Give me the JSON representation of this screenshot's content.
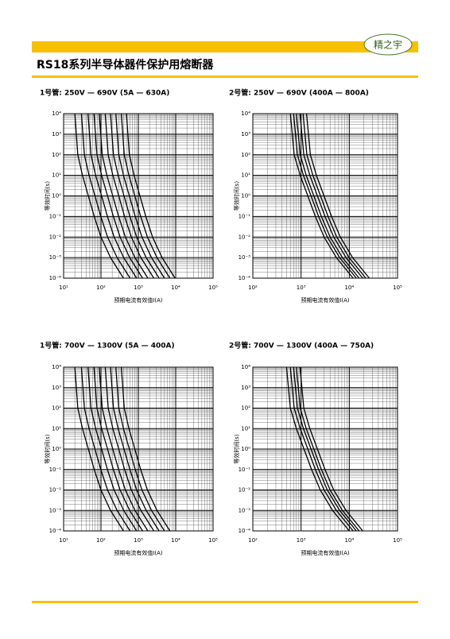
{
  "header": {
    "logo": "精之宇",
    "title": "RS18系列半导体器件保护用熔断器"
  },
  "chart_data": [
    {
      "type": "line",
      "title": "1号管: 250V — 690V (5A — 630A)",
      "ylabel": "等效时间(s)",
      "xlabel": "预期电流有效值I(A)",
      "log_scale": true,
      "grid": true,
      "color": "#000000",
      "xlim": [
        10,
        100000
      ],
      "ylim": [
        0.0001,
        10000
      ],
      "xticks": [
        {
          "value": 10,
          "label": "10¹"
        },
        {
          "value": 100,
          "label": "10²"
        },
        {
          "value": 1000,
          "label": "10³"
        },
        {
          "value": 10000,
          "label": "10⁴"
        },
        {
          "value": 100000,
          "label": "10⁵"
        }
      ],
      "yticks": [
        {
          "value": 0.0001,
          "label": "10⁻⁴"
        },
        {
          "value": 0.001,
          "label": "10⁻³"
        },
        {
          "value": 0.01,
          "label": "10⁻²"
        },
        {
          "value": 0.1,
          "label": "10⁻¹"
        },
        {
          "value": 1,
          "label": "10⁰"
        },
        {
          "value": 10,
          "label": "10¹"
        },
        {
          "value": 100,
          "label": "10²"
        },
        {
          "value": 1000,
          "label": "10³"
        },
        {
          "value": 10000,
          "label": "10⁴"
        }
      ],
      "series": [
        {
          "x": [
            20,
            24,
            32,
            46,
            66,
            100,
            180,
            400
          ],
          "values": [
            10000,
            100,
            10,
            1,
            0.1,
            0.01,
            0.001,
            0.0001
          ]
        },
        {
          "x": [
            30,
            36,
            48,
            69,
            99,
            150,
            270,
            600
          ],
          "values": [
            10000,
            100,
            10,
            1,
            0.1,
            0.01,
            0.001,
            0.0001
          ]
        },
        {
          "x": [
            45,
            54,
            72,
            104,
            149,
            225,
            405,
            900
          ],
          "values": [
            10000,
            100,
            10,
            1,
            0.1,
            0.01,
            0.001,
            0.0001
          ]
        },
        {
          "x": [
            65,
            78,
            104,
            150,
            215,
            325,
            585,
            1300
          ],
          "values": [
            10000,
            100,
            10,
            1,
            0.1,
            0.01,
            0.001,
            0.0001
          ]
        },
        {
          "x": [
            90,
            108,
            144,
            207,
            297,
            450,
            810,
            1800
          ],
          "values": [
            10000,
            100,
            10,
            1,
            0.1,
            0.01,
            0.001,
            0.0001
          ]
        },
        {
          "x": [
            130,
            156,
            208,
            299,
            429,
            650,
            1170,
            2600
          ],
          "values": [
            10000,
            100,
            10,
            1,
            0.1,
            0.01,
            0.001,
            0.0001
          ]
        },
        {
          "x": [
            180,
            216,
            288,
            414,
            594,
            900,
            1620,
            3600
          ],
          "values": [
            10000,
            100,
            10,
            1,
            0.1,
            0.01,
            0.001,
            0.0001
          ]
        },
        {
          "x": [
            250,
            300,
            400,
            575,
            825,
            1250,
            2250,
            5000
          ],
          "values": [
            10000,
            100,
            10,
            1,
            0.1,
            0.01,
            0.001,
            0.0001
          ]
        },
        {
          "x": [
            350,
            420,
            560,
            805,
            1155,
            1750,
            3150,
            7000
          ],
          "values": [
            10000,
            100,
            10,
            1,
            0.1,
            0.01,
            0.001,
            0.0001
          ]
        },
        {
          "x": [
            480,
            576,
            768,
            1104,
            1584,
            2400,
            4320,
            9600
          ],
          "values": [
            10000,
            100,
            10,
            1,
            0.1,
            0.01,
            0.001,
            0.0001
          ]
        }
      ]
    },
    {
      "type": "line",
      "title": "2号管: 250V — 690V (400A — 800A)",
      "ylabel": "等效时间(s)",
      "xlabel": "预期电流有效值I(A)",
      "log_scale": true,
      "grid": true,
      "color": "#000000",
      "xlim": [
        100,
        100000
      ],
      "ylim": [
        0.0001,
        10000
      ],
      "xticks": [
        {
          "value": 100,
          "label": "10²"
        },
        {
          "value": 1000,
          "label": "10³"
        },
        {
          "value": 10000,
          "label": "10⁴"
        },
        {
          "value": 100000,
          "label": "10⁵"
        }
      ],
      "yticks": [
        {
          "value": 0.0001,
          "label": "10⁻⁴"
        },
        {
          "value": 0.001,
          "label": "10⁻³"
        },
        {
          "value": 0.01,
          "label": "10⁻²"
        },
        {
          "value": 0.1,
          "label": "10⁻¹"
        },
        {
          "value": 1,
          "label": "10⁰"
        },
        {
          "value": 10,
          "label": "10¹"
        },
        {
          "value": 100,
          "label": "10²"
        },
        {
          "value": 1000,
          "label": "10³"
        },
        {
          "value": 10000,
          "label": "10⁴"
        }
      ],
      "series": [
        {
          "x": [
            600,
            720,
            960,
            1380,
            1980,
            3000,
            5400,
            12000
          ],
          "values": [
            10000,
            100,
            10,
            1,
            0.1,
            0.01,
            0.001,
            0.0001
          ]
        },
        {
          "x": [
            700,
            840,
            1120,
            1610,
            2310,
            3500,
            6300,
            14000
          ],
          "values": [
            10000,
            100,
            10,
            1,
            0.1,
            0.01,
            0.001,
            0.0001
          ]
        },
        {
          "x": [
            800,
            960,
            1280,
            1840,
            2640,
            4000,
            7200,
            16000
          ],
          "values": [
            10000,
            100,
            10,
            1,
            0.1,
            0.01,
            0.001,
            0.0001
          ]
        },
        {
          "x": [
            950,
            1140,
            1520,
            2185,
            3135,
            4750,
            8550,
            19000
          ],
          "values": [
            10000,
            100,
            10,
            1,
            0.1,
            0.01,
            0.001,
            0.0001
          ]
        },
        {
          "x": [
            1100,
            1320,
            1760,
            2530,
            3630,
            5500,
            9900,
            22000
          ],
          "values": [
            10000,
            100,
            10,
            1,
            0.1,
            0.01,
            0.001,
            0.0001
          ]
        },
        {
          "x": [
            1300,
            1560,
            2080,
            2990,
            4290,
            6500,
            11700,
            26000
          ],
          "values": [
            10000,
            100,
            10,
            1,
            0.1,
            0.01,
            0.001,
            0.0001
          ]
        }
      ]
    },
    {
      "type": "line",
      "title": "1号管: 700V — 1300V (5A — 400A)",
      "ylabel": "等效时间(s)",
      "xlabel": "预期电流有效值I(A)",
      "log_scale": true,
      "grid": true,
      "color": "#000000",
      "xlim": [
        10,
        100000
      ],
      "ylim": [
        0.0001,
        10000
      ],
      "xticks": [
        {
          "value": 10,
          "label": "10¹"
        },
        {
          "value": 100,
          "label": "10²"
        },
        {
          "value": 1000,
          "label": "10³"
        },
        {
          "value": 10000,
          "label": "10⁴"
        },
        {
          "value": 100000,
          "label": "10⁵"
        }
      ],
      "yticks": [
        {
          "value": 0.0001,
          "label": "10⁻⁴"
        },
        {
          "value": 0.001,
          "label": "10⁻³"
        },
        {
          "value": 0.01,
          "label": "10⁻²"
        },
        {
          "value": 0.1,
          "label": "10⁻¹"
        },
        {
          "value": 1,
          "label": "10⁰"
        },
        {
          "value": 10,
          "label": "10¹"
        },
        {
          "value": 100,
          "label": "10²"
        },
        {
          "value": 1000,
          "label": "10³"
        },
        {
          "value": 10000,
          "label": "10⁴"
        }
      ],
      "series": [
        {
          "x": [
            20,
            24,
            32,
            46,
            66,
            100,
            180,
            400
          ],
          "values": [
            10000,
            100,
            10,
            1,
            0.1,
            0.01,
            0.001,
            0.0001
          ]
        },
        {
          "x": [
            30,
            36,
            48,
            69,
            99,
            150,
            270,
            600
          ],
          "values": [
            10000,
            100,
            10,
            1,
            0.1,
            0.01,
            0.001,
            0.0001
          ]
        },
        {
          "x": [
            45,
            54,
            72,
            104,
            149,
            225,
            405,
            900
          ],
          "values": [
            10000,
            100,
            10,
            1,
            0.1,
            0.01,
            0.001,
            0.0001
          ]
        },
        {
          "x": [
            65,
            78,
            104,
            150,
            215,
            325,
            585,
            1300
          ],
          "values": [
            10000,
            100,
            10,
            1,
            0.1,
            0.01,
            0.001,
            0.0001
          ]
        },
        {
          "x": [
            90,
            108,
            144,
            207,
            297,
            450,
            810,
            1800
          ],
          "values": [
            10000,
            100,
            10,
            1,
            0.1,
            0.01,
            0.001,
            0.0001
          ]
        },
        {
          "x": [
            130,
            156,
            208,
            299,
            429,
            650,
            1170,
            2600
          ],
          "values": [
            10000,
            100,
            10,
            1,
            0.1,
            0.01,
            0.001,
            0.0001
          ]
        },
        {
          "x": [
            180,
            216,
            288,
            414,
            594,
            900,
            1620,
            3600
          ],
          "values": [
            10000,
            100,
            10,
            1,
            0.1,
            0.01,
            0.001,
            0.0001
          ]
        },
        {
          "x": [
            250,
            300,
            400,
            575,
            825,
            1250,
            2250,
            5000
          ],
          "values": [
            10000,
            100,
            10,
            1,
            0.1,
            0.01,
            0.001,
            0.0001
          ]
        },
        {
          "x": [
            350,
            420,
            560,
            805,
            1155,
            1750,
            3150,
            7000
          ],
          "values": [
            10000,
            100,
            10,
            1,
            0.1,
            0.01,
            0.001,
            0.0001
          ]
        }
      ]
    },
    {
      "type": "line",
      "title": "2号管: 700V — 1300V (400A — 750A)",
      "ylabel": "等效时间(s)",
      "xlabel": "预期电流有效值I(A)",
      "log_scale": true,
      "grid": true,
      "color": "#000000",
      "xlim": [
        100,
        100000
      ],
      "ylim": [
        0.0001,
        10000
      ],
      "xticks": [
        {
          "value": 100,
          "label": "10²"
        },
        {
          "value": 1000,
          "label": "10³"
        },
        {
          "value": 10000,
          "label": "10⁴"
        },
        {
          "value": 100000,
          "label": "10⁵"
        }
      ],
      "yticks": [
        {
          "value": 0.0001,
          "label": "10⁻⁴"
        },
        {
          "value": 0.001,
          "label": "10⁻³"
        },
        {
          "value": 0.01,
          "label": "10⁻²"
        },
        {
          "value": 0.1,
          "label": "10⁻¹"
        },
        {
          "value": 1,
          "label": "10⁰"
        },
        {
          "value": 10,
          "label": "10¹"
        },
        {
          "value": 100,
          "label": "10²"
        },
        {
          "value": 1000,
          "label": "10³"
        },
        {
          "value": 10000,
          "label": "10⁴"
        }
      ],
      "series": [
        {
          "x": [
            500,
            600,
            800,
            1150,
            1650,
            2500,
            4500,
            10000
          ],
          "values": [
            10000,
            100,
            10,
            1,
            0.1,
            0.01,
            0.001,
            0.0001
          ]
        },
        {
          "x": [
            600,
            720,
            960,
            1380,
            1980,
            3000,
            5400,
            12000
          ],
          "values": [
            10000,
            100,
            10,
            1,
            0.1,
            0.01,
            0.001,
            0.0001
          ]
        },
        {
          "x": [
            700,
            840,
            1120,
            1610,
            2310,
            3500,
            6300,
            14000
          ],
          "values": [
            10000,
            100,
            10,
            1,
            0.1,
            0.01,
            0.001,
            0.0001
          ]
        },
        {
          "x": [
            800,
            960,
            1280,
            1840,
            2640,
            4000,
            7200,
            16000
          ],
          "values": [
            10000,
            100,
            10,
            1,
            0.1,
            0.01,
            0.001,
            0.0001
          ]
        },
        {
          "x": [
            950,
            1140,
            1520,
            2185,
            3135,
            4750,
            8550,
            19000
          ],
          "values": [
            10000,
            100,
            10,
            1,
            0.1,
            0.01,
            0.001,
            0.0001
          ]
        }
      ]
    }
  ]
}
